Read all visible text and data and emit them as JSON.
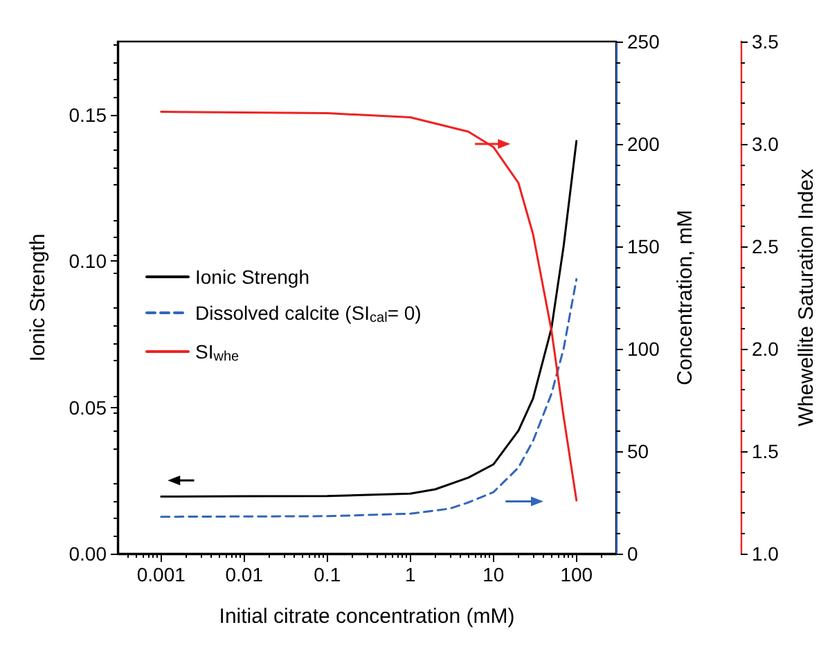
{
  "chart_data": {
    "type": "line",
    "xlabel": "Initial citrate concentration (mM)",
    "ylabel": "Ionic Strength",
    "y2label": "Concentration, mM",
    "y3label": "Whewellite Saturation Index",
    "log": "x",
    "grid": false,
    "legend": "left",
    "marker": "none",
    "xlim": [
      0.0003,
      300
    ],
    "xticks": [
      0.001,
      0.01,
      0.1,
      1,
      10,
      100
    ],
    "ylim": [
      0,
      0.175
    ],
    "yticks": [
      {
        "value": 0,
        "label": "0.00"
      },
      0.05,
      {
        "value": 0.1,
        "label": "0.10"
      },
      0.15
    ],
    "y2lim": [
      0,
      250
    ],
    "y2ticks": [
      0,
      50,
      100,
      150,
      200,
      250
    ],
    "y3lim": [
      1,
      3.5
    ],
    "y3ticks": [
      {
        "value": 1,
        "label": "1.0"
      },
      1.5,
      {
        "value": 2,
        "label": "2.0"
      },
      2.5,
      {
        "value": 3,
        "label": "3.0"
      },
      3.5
    ],
    "series": [
      {
        "name": "Ionic Strengh",
        "color": "#000000",
        "line_style": "solid",
        "x": [
          0.001,
          0.01,
          0.1,
          1,
          2,
          5,
          10,
          20,
          30,
          50,
          70,
          100
        ],
        "values": [
          0.0195,
          0.0196,
          0.0197,
          0.0205,
          0.022,
          0.026,
          0.0305,
          0.042,
          0.053,
          0.077,
          0.105,
          0.141
        ]
      },
      {
        "name": "Dissolved calcite (SI$_{cal}$= 0)",
        "color": "#3366bb",
        "line_style": "dashed",
        "axis": "y2",
        "x": [
          0.001,
          0.1,
          1,
          3,
          5,
          10,
          20,
          30,
          50,
          70,
          100
        ],
        "values": [
          18,
          18.3,
          19.5,
          22,
          25,
          30,
          42,
          55,
          78,
          100,
          134
        ]
      },
      {
        "name": "SI$_{whe}$",
        "color": "#ee2222",
        "line_style": "solid",
        "axis": "y3",
        "x": [
          0.001,
          0.1,
          1,
          5,
          10,
          20,
          30,
          50,
          70,
          100
        ],
        "values": [
          3.157,
          3.15,
          3.13,
          3.06,
          2.985,
          2.81,
          2.56,
          2.09,
          1.67,
          1.26
        ]
      }
    ]
  }
}
